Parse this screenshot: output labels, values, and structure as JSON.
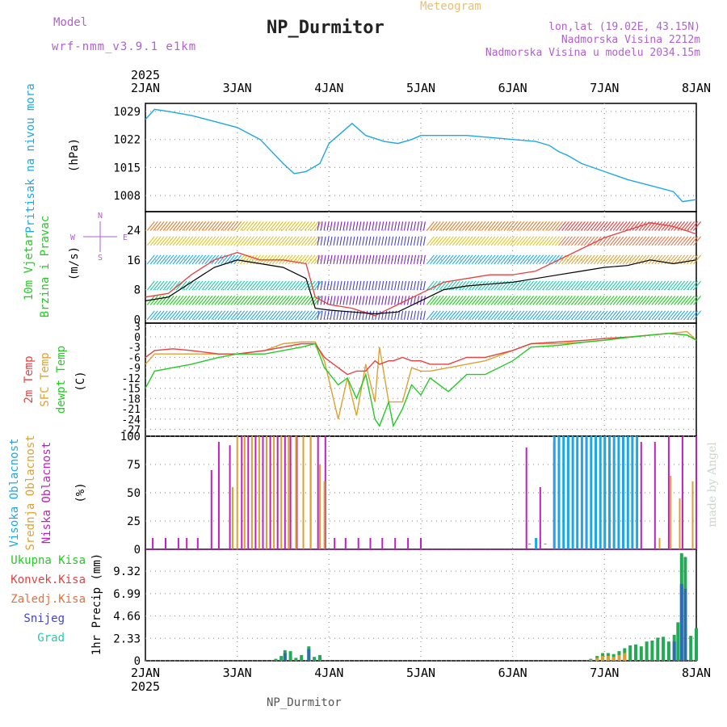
{
  "header": {
    "model_label": "Model",
    "model_version": "wrf-nmm_v3.9.1  e1km",
    "title": "NP_Durmitor",
    "subtitle": "Meteogram",
    "lonlat": "lon,lat (19.02E, 43.15N)",
    "altitude": "Nadmorska Visina 2212m",
    "model_altitude": "Nadmorska Visina u modelu 2034.15m",
    "footer": "NP_Durmitor",
    "watermark": "made by Angel"
  },
  "colors": {
    "pressure": "#1ea7e6",
    "wind_speed": "#000000",
    "gust": "#e84040",
    "temp_2m": "#e84040",
    "temp_sfc": "#e0a030",
    "dewpoint": "#22cc22",
    "high_cloud": "#1ea7e6",
    "mid_cloud": "#e0a030",
    "low_cloud": "#c020c0",
    "total_precip": "#22cc22",
    "conv_precip": "#e84040",
    "snow": "#4040e0",
    "grid": "#999999"
  },
  "chart_data": [
    {
      "type": "line",
      "panel": "pressure",
      "ylabel": "Pritisak na nivou mora",
      "unit": "(hPa)",
      "yticks": [
        "1029",
        "1022",
        "1015",
        "1008"
      ],
      "ylim": [
        1004,
        1031
      ],
      "x_days": [
        2,
        2.1,
        2.25,
        2.5,
        2.75,
        3,
        3.25,
        3.5,
        3.62,
        3.75,
        3.9,
        4.0,
        4.1,
        4.2,
        4.25,
        4.4,
        4.6,
        4.75,
        4.9,
        5.0,
        5.25,
        5.5,
        5.75,
        6.0,
        6.25,
        6.4,
        6.5,
        6.6,
        6.75,
        7.0,
        7.25,
        7.5,
        7.75,
        7.85,
        8.0
      ],
      "series": [
        {
          "name": "pressure",
          "values": [
            1027,
            1029.5,
            1029,
            1028,
            1026.5,
            1025,
            1022,
            1016,
            1013.5,
            1014,
            1016,
            1021,
            1023,
            1025,
            1026,
            1023,
            1021.5,
            1021,
            1022,
            1023,
            1023,
            1023,
            1022.5,
            1022,
            1021.5,
            1020.5,
            1019,
            1018,
            1016,
            1014,
            1012,
            1010.5,
            1009,
            1006.5,
            1007
          ]
        }
      ]
    },
    {
      "type": "line",
      "panel": "wind",
      "ylabel": "10m Vjetar Brzina i Pravac",
      "unit": "(m/s)",
      "direction_legend": [
        "N",
        "E",
        "W",
        "S"
      ],
      "yticks": [
        "0",
        "8",
        "16",
        "24"
      ],
      "ylim": [
        -1,
        29
      ],
      "x_days": [
        2,
        2.25,
        2.5,
        2.75,
        3,
        3.25,
        3.5,
        3.75,
        3.85,
        4.0,
        4.25,
        4.5,
        4.75,
        5.0,
        5.25,
        5.5,
        5.75,
        6.0,
        6.25,
        6.5,
        6.75,
        7.0,
        7.25,
        7.5,
        7.75,
        8.0
      ],
      "series": [
        {
          "name": "wind speed",
          "values": [
            5,
            6,
            10,
            14,
            16,
            15,
            14,
            11,
            3,
            2.5,
            2,
            1.5,
            2,
            5,
            8,
            9,
            9.5,
            10,
            11,
            12,
            13,
            14,
            14.5,
            16,
            15,
            16
          ]
        },
        {
          "name": "gust",
          "values": [
            6,
            7,
            12,
            16,
            18,
            16,
            16,
            15,
            6,
            4,
            3,
            1,
            4,
            7,
            10,
            11,
            12,
            12,
            13,
            16,
            19,
            22,
            24,
            26,
            25,
            23
          ]
        }
      ]
    },
    {
      "type": "line",
      "panel": "temperature",
      "series_labels": [
        "2m Temp",
        "SFC Temp",
        "dewpt Temp"
      ],
      "unit": "(C)",
      "yticks": [
        "3",
        "0",
        "-3",
        "-6",
        "-9",
        "-12",
        "-15",
        "-18",
        "-21",
        "-24",
        "-27"
      ],
      "ylim": [
        -29,
        4
      ],
      "x_days": [
        2,
        2.1,
        2.3,
        2.5,
        2.8,
        3.0,
        3.3,
        3.5,
        3.7,
        3.85,
        3.95,
        4.1,
        4.2,
        4.3,
        4.4,
        4.5,
        4.55,
        4.65,
        4.7,
        4.8,
        4.9,
        5.0,
        5.1,
        5.3,
        5.5,
        5.7,
        6.0,
        6.2,
        6.5,
        6.8,
        7.0,
        7.3,
        7.5,
        7.7,
        7.9,
        8.0
      ],
      "series": [
        {
          "name": "2m Temp",
          "values": [
            -6,
            -4,
            -3.5,
            -4,
            -5,
            -5,
            -4,
            -3,
            -2,
            -2,
            -6,
            -9,
            -11,
            -10,
            -10,
            -7,
            -8,
            -7,
            -7,
            -6,
            -7,
            -7,
            -8,
            -8,
            -6,
            -6,
            -4,
            -2,
            -1.5,
            -1,
            -0.5,
            0,
            0.5,
            1,
            0.5,
            -1
          ]
        },
        {
          "name": "SFC Temp",
          "values": [
            -8,
            -5,
            -5,
            -5,
            -5,
            -5,
            -4,
            -2,
            -1.5,
            -1.5,
            -7,
            -24,
            -12,
            -23,
            -8,
            -19,
            -3,
            -19,
            -19,
            -19,
            -9,
            -10,
            -10,
            -9,
            -8,
            -7,
            -4,
            -2,
            -2,
            -1.5,
            -1,
            0,
            0.5,
            1,
            1.5,
            -1
          ]
        },
        {
          "name": "dewpt Temp",
          "values": [
            -15,
            -10,
            -9,
            -8,
            -6,
            -5,
            -5,
            -4,
            -3,
            -2,
            -9,
            -14,
            -12,
            -18,
            -11,
            -24,
            -26,
            -19,
            -26,
            -21,
            -14,
            -17,
            -12,
            -16,
            -11,
            -11,
            -7,
            -3,
            -2.5,
            -1.5,
            -1,
            0,
            0.5,
            1,
            0.5,
            -1
          ]
        }
      ]
    },
    {
      "type": "bar",
      "panel": "cloud",
      "series_labels": [
        "Visoka Oblacnost",
        "Srednja Oblacnost",
        "Niska Oblacnost"
      ],
      "unit": "(%)",
      "yticks": [
        "0",
        "25",
        "50",
        "75",
        "100"
      ],
      "ylim": [
        0,
        100
      ],
      "series": [
        {
          "name": "low",
          "x": [
            2.08,
            2.22,
            2.36,
            2.45,
            2.57,
            2.72,
            2.8,
            2.92,
            3.05,
            3.12,
            3.2,
            3.28,
            3.36,
            3.44,
            3.52,
            3.58,
            3.65,
            3.72,
            3.8,
            3.88,
            3.96,
            4.06,
            4.18,
            4.32,
            4.45,
            4.58,
            4.72,
            4.86,
            5.0,
            6.15,
            6.3,
            6.45,
            6.6,
            6.8,
            7.0,
            7.2,
            7.4,
            7.55,
            7.7,
            7.85,
            8.0
          ],
          "values": [
            10,
            10,
            10,
            10,
            10,
            70,
            95,
            92,
            100,
            100,
            100,
            100,
            100,
            100,
            100,
            100,
            100,
            100,
            100,
            100,
            100,
            10,
            10,
            10,
            10,
            10,
            10,
            10,
            10,
            90,
            55,
            95,
            100,
            100,
            100,
            100,
            95,
            95,
            100,
            100,
            100
          ]
        },
        {
          "name": "mid",
          "x": [
            2.95,
            3.0,
            3.08,
            3.16,
            3.24,
            3.32,
            3.4,
            3.48,
            3.56,
            3.64,
            3.72,
            3.8,
            3.9,
            3.95,
            6.5,
            6.6,
            6.75,
            6.9,
            7.1,
            7.3,
            7.6,
            7.72,
            7.82,
            7.96
          ],
          "values": [
            55,
            100,
            100,
            100,
            100,
            100,
            100,
            100,
            100,
            100,
            100,
            100,
            75,
            60,
            40,
            95,
            100,
            85,
            90,
            100,
            10,
            65,
            45,
            60
          ]
        },
        {
          "name": "high",
          "x": [
            6.18,
            6.25,
            6.35,
            6.45,
            6.5,
            6.55,
            6.6,
            6.65,
            6.7,
            6.75,
            6.8,
            6.85,
            6.9,
            6.95,
            7.0,
            7.05,
            7.1,
            7.15,
            7.2,
            7.25,
            7.3,
            7.35
          ],
          "values": [
            5,
            10,
            5,
            100,
            100,
            100,
            100,
            100,
            100,
            100,
            100,
            100,
            100,
            100,
            100,
            100,
            100,
            100,
            100,
            100,
            100,
            100
          ]
        }
      ]
    },
    {
      "type": "bar",
      "panel": "precip",
      "legend": [
        "Ukupna Kisa",
        "Konvek.Kisa",
        "Zaledj.Kisa",
        "Snijeg",
        "Grad"
      ],
      "ylabel": "1hr Precip (mm)",
      "yticks": [
        "0",
        "2.33",
        "4.66",
        "6.99",
        "9.32"
      ],
      "ylim": [
        0,
        11.6
      ],
      "x_ticks": [
        "2JAN",
        "3JAN",
        "4JAN",
        "5JAN",
        "6JAN",
        "7JAN",
        "8JAN"
      ],
      "year": "2025",
      "series": [
        {
          "name": "Ukupna Kisa",
          "x": [
            3.42,
            3.48,
            3.52,
            3.58,
            3.64,
            3.7,
            3.78,
            3.84,
            3.9,
            6.85,
            6.92,
            6.98,
            7.04,
            7.1,
            7.16,
            7.22,
            7.28,
            7.34,
            7.4,
            7.46,
            7.52,
            7.58,
            7.64,
            7.7,
            7.76,
            7.8,
            7.84,
            7.88,
            7.94,
            8.0
          ],
          "values": [
            0.2,
            0.5,
            1.1,
            1.0,
            0.3,
            0.6,
            1.5,
            0.4,
            0.6,
            0.2,
            0.5,
            0.8,
            0.8,
            0.7,
            1.0,
            1.3,
            1.6,
            1.7,
            1.5,
            2.0,
            2.1,
            2.4,
            2.5,
            2.0,
            2.7,
            4.0,
            11.2,
            10.8,
            2.6,
            3.4
          ]
        },
        {
          "name": "Konvek.Kisa",
          "x": [
            6.85,
            6.92,
            6.98,
            7.04,
            7.1,
            7.16,
            7.22
          ],
          "values": [
            0.1,
            0.3,
            0.5,
            0.5,
            0.4,
            0.6,
            0.8
          ]
        },
        {
          "name": "Snijeg",
          "x": [
            3.52,
            3.78,
            7.76,
            7.84,
            7.88
          ],
          "values": [
            0.8,
            1.2,
            2.0,
            8.0,
            7.5
          ]
        }
      ]
    }
  ]
}
